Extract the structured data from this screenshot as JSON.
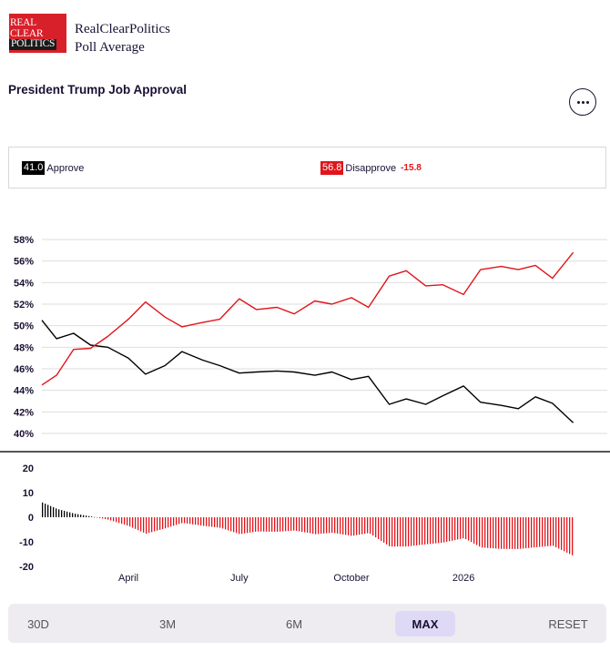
{
  "brand": {
    "logo_lines": [
      "REAL",
      "CLEAR",
      "POLITICS"
    ],
    "line1": "RealClearPolitics",
    "line2": "Poll Average"
  },
  "title": "President Trump Job Approval",
  "more_icon": "ellipsis-icon",
  "legend": {
    "approve": {
      "value": "41.0",
      "label": "Approve",
      "color": "#000000"
    },
    "disapprove": {
      "value": "56.8",
      "label": "Disapprove",
      "color": "#e0151b"
    },
    "spread": "-15.8"
  },
  "chart_data": [
    {
      "type": "line",
      "x_range": [
        "2025-01-20",
        "2026-04-20"
      ],
      "x_ticks": [
        "April",
        "July",
        "October",
        "2026"
      ],
      "y_ticks": [
        "58%",
        "56%",
        "54%",
        "52%",
        "50%",
        "48%",
        "46%",
        "44%",
        "42%",
        "40%"
      ],
      "ylim": [
        40,
        58
      ],
      "grid": true,
      "series": [
        {
          "name": "Approve",
          "color": "#000000",
          "points": [
            [
              "2025-01-20",
              50.5
            ],
            [
              "2025-02-01",
              48.8
            ],
            [
              "2025-02-15",
              49.3
            ],
            [
              "2025-03-01",
              48.2
            ],
            [
              "2025-03-15",
              48.0
            ],
            [
              "2025-04-01",
              47.0
            ],
            [
              "2025-04-15",
              45.5
            ],
            [
              "2025-05-01",
              46.3
            ],
            [
              "2025-05-15",
              47.6
            ],
            [
              "2025-06-01",
              46.8
            ],
            [
              "2025-06-15",
              46.3
            ],
            [
              "2025-07-01",
              45.6
            ],
            [
              "2025-07-15",
              45.7
            ],
            [
              "2025-08-01",
              45.8
            ],
            [
              "2025-08-15",
              45.7
            ],
            [
              "2025-09-01",
              45.4
            ],
            [
              "2025-09-15",
              45.7
            ],
            [
              "2025-10-01",
              45.0
            ],
            [
              "2025-10-15",
              45.3
            ],
            [
              "2025-11-01",
              42.7
            ],
            [
              "2025-11-15",
              43.2
            ],
            [
              "2025-12-01",
              42.7
            ],
            [
              "2025-12-15",
              43.5
            ],
            [
              "2026-01-01",
              44.4
            ],
            [
              "2026-01-15",
              42.9
            ],
            [
              "2026-02-01",
              42.6
            ],
            [
              "2026-02-15",
              42.3
            ],
            [
              "2026-03-01",
              43.4
            ],
            [
              "2026-03-15",
              42.8
            ],
            [
              "2026-04-01",
              41.0
            ]
          ]
        },
        {
          "name": "Disapprove",
          "color": "#e0151b",
          "points": [
            [
              "2025-01-20",
              44.5
            ],
            [
              "2025-02-01",
              45.4
            ],
            [
              "2025-02-15",
              47.8
            ],
            [
              "2025-03-01",
              47.9
            ],
            [
              "2025-03-15",
              49.0
            ],
            [
              "2025-04-01",
              50.6
            ],
            [
              "2025-04-15",
              52.2
            ],
            [
              "2025-05-01",
              50.8
            ],
            [
              "2025-05-15",
              49.9
            ],
            [
              "2025-06-01",
              50.3
            ],
            [
              "2025-06-15",
              50.6
            ],
            [
              "2025-07-01",
              52.5
            ],
            [
              "2025-07-15",
              51.5
            ],
            [
              "2025-08-01",
              51.7
            ],
            [
              "2025-08-15",
              51.1
            ],
            [
              "2025-09-01",
              52.3
            ],
            [
              "2025-09-15",
              52.0
            ],
            [
              "2025-10-01",
              52.6
            ],
            [
              "2025-10-15",
              51.7
            ],
            [
              "2025-11-01",
              54.6
            ],
            [
              "2025-11-15",
              55.1
            ],
            [
              "2025-12-01",
              53.7
            ],
            [
              "2025-12-15",
              53.8
            ],
            [
              "2026-01-01",
              52.9
            ],
            [
              "2026-01-15",
              55.2
            ],
            [
              "2026-02-01",
              55.5
            ],
            [
              "2026-02-15",
              55.2
            ],
            [
              "2026-03-01",
              55.6
            ],
            [
              "2026-03-15",
              54.4
            ],
            [
              "2026-04-01",
              56.8
            ]
          ]
        }
      ]
    },
    {
      "type": "bar",
      "x_range": [
        "2025-01-20",
        "2026-04-20"
      ],
      "y_ticks": [
        "20",
        "10",
        "0",
        "-10",
        "-20"
      ],
      "ylim": [
        -22,
        25
      ],
      "series": [
        {
          "name": "Spread",
          "positive_color": "#000000",
          "negative_color": "#e0151b",
          "points": [
            [
              "2025-01-20",
              6.0
            ],
            [
              "2025-02-01",
              3.4
            ],
            [
              "2025-02-15",
              1.5
            ],
            [
              "2025-03-01",
              0.3
            ],
            [
              "2025-03-15",
              -1.0
            ],
            [
              "2025-04-01",
              -3.6
            ],
            [
              "2025-04-15",
              -6.7
            ],
            [
              "2025-05-01",
              -4.5
            ],
            [
              "2025-05-15",
              -2.3
            ],
            [
              "2025-06-01",
              -3.5
            ],
            [
              "2025-06-15",
              -4.3
            ],
            [
              "2025-07-01",
              -6.9
            ],
            [
              "2025-07-15",
              -5.8
            ],
            [
              "2025-08-01",
              -5.9
            ],
            [
              "2025-08-15",
              -5.4
            ],
            [
              "2025-09-01",
              -6.9
            ],
            [
              "2025-09-15",
              -6.3
            ],
            [
              "2025-10-01",
              -7.6
            ],
            [
              "2025-10-15",
              -6.4
            ],
            [
              "2025-11-01",
              -11.9
            ],
            [
              "2025-11-15",
              -11.9
            ],
            [
              "2025-12-01",
              -11.0
            ],
            [
              "2025-12-15",
              -10.3
            ],
            [
              "2026-01-01",
              -8.5
            ],
            [
              "2026-01-15",
              -12.3
            ],
            [
              "2026-02-01",
              -12.9
            ],
            [
              "2026-02-15",
              -12.9
            ],
            [
              "2026-03-01",
              -12.2
            ],
            [
              "2026-03-15",
              -11.6
            ],
            [
              "2026-04-01",
              -15.8
            ]
          ]
        }
      ]
    }
  ],
  "ranges": [
    "30D",
    "3M",
    "6M",
    "MAX",
    "RESET"
  ],
  "active_range": "MAX"
}
